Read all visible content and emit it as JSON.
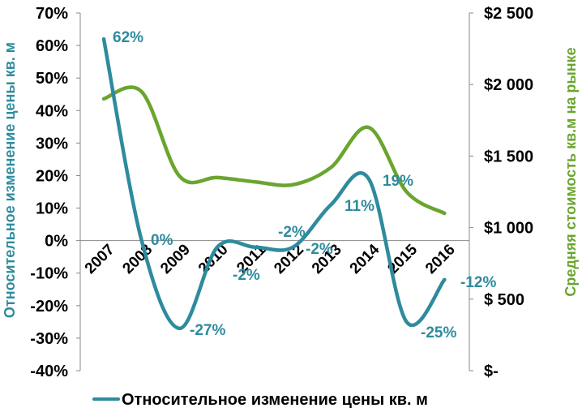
{
  "chart_data": {
    "type": "line",
    "categories": [
      "2007",
      "2008",
      "2009",
      "2010",
      "2011",
      "2012",
      "2013",
      "2014",
      "2015",
      "2016"
    ],
    "series": [
      {
        "name": "Относительное изменение цены кв. м",
        "axis": "left",
        "values": [
          62,
          0,
          -27,
          -2,
          -2,
          -2,
          11,
          19,
          -25,
          -12
        ],
        "data_labels": [
          "62%",
          "0%",
          "-27%",
          "-2%",
          "-2%",
          "-2%",
          "11%",
          "19%",
          "-25%",
          "-12%"
        ],
        "color": "#2E8B9E"
      },
      {
        "axis": "right",
        "values": [
          1900,
          1950,
          1360,
          1350,
          1320,
          1300,
          1420,
          1700,
          1250,
          1100
        ],
        "color": "#6AA52E"
      }
    ],
    "y_left": {
      "label": "Относительное изменение цены кв. м",
      "range": [
        -40,
        70
      ],
      "ticks": [
        "70%",
        "60%",
        "50%",
        "40%",
        "30%",
        "20%",
        "10%",
        "0%",
        "-10%",
        "-20%",
        "-30%",
        "-40%"
      ]
    },
    "y_right": {
      "label": "Средняя стоимость кв.м на рынке",
      "range": [
        0,
        2500
      ],
      "ticks": [
        "$2 500",
        "$2 000",
        "$1 500",
        "$1 000",
        "$ 500",
        "$-"
      ]
    },
    "legend": {
      "position": "bottom",
      "entries": [
        "Относительное изменение цены кв. м"
      ]
    },
    "grid": false
  }
}
